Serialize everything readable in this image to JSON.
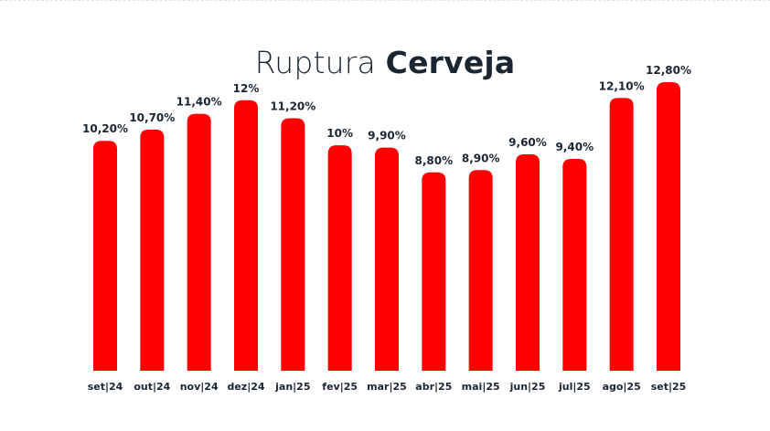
{
  "title": {
    "light": "Ruptura",
    "bold": "Cerveja"
  },
  "colors": {
    "bar": "#ff0000",
    "text": "#1b2633",
    "title": "#1b2633"
  },
  "chart_data": {
    "type": "bar",
    "title": "Ruptura Cerveja",
    "categories": [
      "set|24",
      "out|24",
      "nov|24",
      "dez|24",
      "jan|25",
      "fev|25",
      "mar|25",
      "abr|25",
      "mai|25",
      "jun|25",
      "jul|25",
      "ago|25",
      "set|25"
    ],
    "values": [
      10.2,
      10.7,
      11.4,
      12,
      11.2,
      10,
      9.9,
      8.8,
      8.9,
      9.6,
      9.4,
      12.1,
      12.8
    ],
    "data_labels": [
      "10,20%",
      "10,70%",
      "11,40%",
      "12%",
      "11,20%",
      "10%",
      "9,90%",
      "8,80%",
      "8,90%",
      "9,60%",
      "9,40%",
      "12,10%",
      "12,80%"
    ],
    "xlabel": "",
    "ylabel": "",
    "ylim": [
      0,
      12.8
    ],
    "grid": false,
    "legend": "none"
  }
}
